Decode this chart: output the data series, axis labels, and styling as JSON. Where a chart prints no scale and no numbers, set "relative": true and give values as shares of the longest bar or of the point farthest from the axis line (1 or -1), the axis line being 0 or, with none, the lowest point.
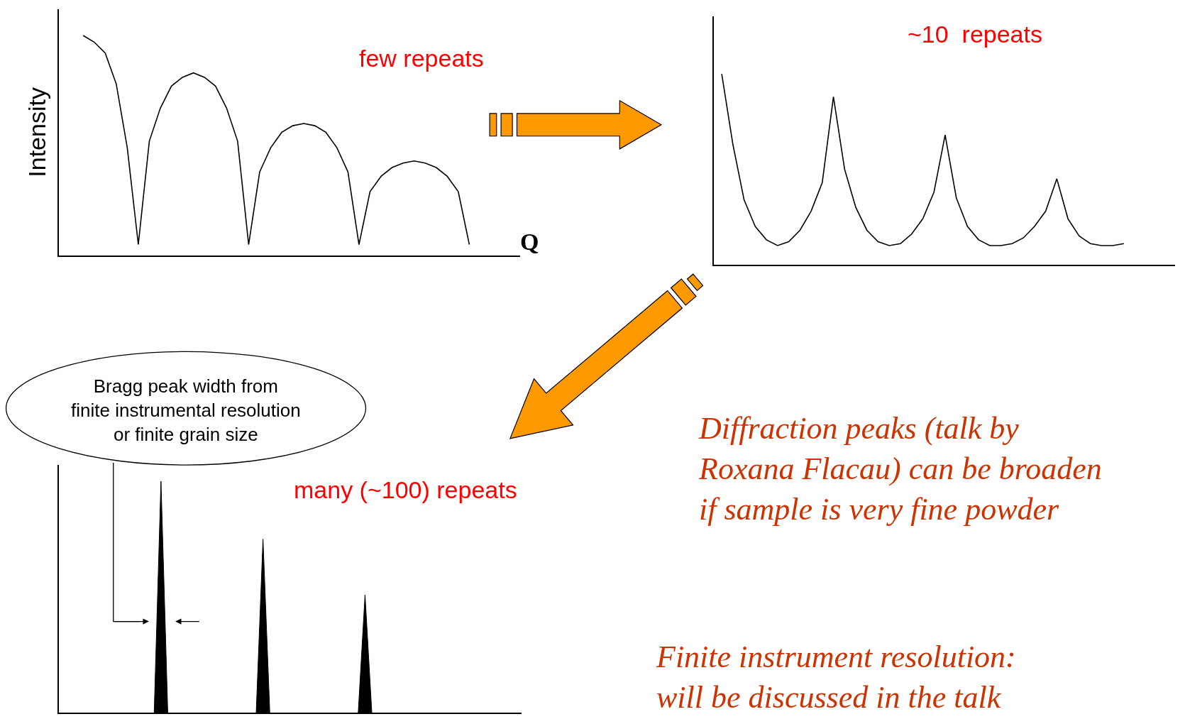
{
  "chart_data": [
    {
      "type": "line",
      "title": "few repeats",
      "ylabel": "Intensity",
      "xlabel": "Q",
      "relative": true,
      "tick_labels": false,
      "color": "#000000",
      "categories": [
        null,
        null,
        null,
        null,
        null,
        null,
        null,
        null,
        null,
        null,
        null,
        null,
        null,
        null,
        null,
        null,
        null,
        null,
        null,
        null,
        null,
        null,
        null,
        null,
        null,
        null,
        null,
        null,
        null,
        null,
        null,
        null,
        null,
        null,
        null,
        null
      ],
      "values": [
        1.0,
        0.97,
        0.92,
        0.78,
        0.49,
        0.05,
        0.52,
        0.67,
        0.77,
        0.81,
        0.83,
        0.81,
        0.77,
        0.67,
        0.52,
        0.05,
        0.38,
        0.49,
        0.56,
        0.59,
        0.6,
        0.59,
        0.56,
        0.49,
        0.38,
        0.05,
        0.29,
        0.36,
        0.4,
        0.42,
        0.43,
        0.42,
        0.4,
        0.36,
        0.29,
        0.05
      ]
    },
    {
      "type": "line",
      "title": "~10  repeats",
      "relative": true,
      "tick_labels": false,
      "color": "#000000",
      "categories": [
        null,
        null,
        null,
        null,
        null,
        null,
        null,
        null,
        null,
        null,
        null,
        null,
        null,
        null,
        null,
        null,
        null,
        null,
        null,
        null,
        null,
        null,
        null,
        null,
        null,
        null,
        null,
        null,
        null,
        null,
        null,
        null,
        null,
        null,
        null,
        null,
        null
      ],
      "values": [
        1.0,
        0.63,
        0.34,
        0.2,
        0.13,
        0.1,
        0.12,
        0.18,
        0.28,
        0.43,
        0.88,
        0.5,
        0.3,
        0.18,
        0.12,
        0.1,
        0.11,
        0.16,
        0.24,
        0.38,
        0.68,
        0.35,
        0.2,
        0.13,
        0.1,
        0.1,
        0.11,
        0.14,
        0.2,
        0.28,
        0.45,
        0.24,
        0.15,
        0.11,
        0.1,
        0.1,
        0.11
      ]
    },
    {
      "type": "area",
      "title": "many (~100) repeats",
      "relative": true,
      "tick_labels": false,
      "color": "#000000",
      "annotations": [
        "Bragg peak width from\nfinite instrumental resolution\nor finite grain size"
      ],
      "categories": [
        null,
        null,
        null,
        null,
        null,
        null,
        null,
        null,
        null,
        null,
        null,
        null,
        null,
        null,
        null,
        null,
        null,
        null,
        null,
        null,
        null,
        null,
        null,
        null,
        null,
        null,
        null,
        null,
        null,
        null,
        null,
        null,
        null,
        null,
        null,
        null,
        null,
        null,
        null,
        null,
        null,
        null,
        null,
        null,
        null,
        null,
        null,
        null,
        null,
        null,
        null,
        null,
        null,
        null,
        null,
        null,
        null,
        null,
        null,
        null,
        null,
        null,
        null,
        null,
        null,
        null,
        null,
        null
      ],
      "values": [
        0,
        0,
        0,
        0,
        0,
        0,
        0,
        0,
        0,
        0,
        0,
        0,
        0,
        0,
        1.0,
        0,
        0,
        0,
        0,
        0,
        0,
        0,
        0,
        0,
        0,
        0,
        0,
        0,
        0,
        0.75,
        0,
        0,
        0,
        0,
        0,
        0,
        0,
        0,
        0,
        0,
        0,
        0,
        0,
        0,
        0.51,
        0,
        0,
        0,
        0,
        0,
        0,
        0,
        0,
        0,
        0,
        0,
        0,
        0,
        0,
        0,
        0,
        0,
        0,
        0,
        0,
        0,
        0,
        0
      ]
    },
    {
      "type": "other",
      "color": "#cc3300",
      "annotations": [
        "Diffraction peaks (talk by\nRoxana Flacau) can be broaden\nif sample is very fine powder",
        "Finite instrument resolution:\nwill be discussed in the talk"
      ]
    }
  ]
}
